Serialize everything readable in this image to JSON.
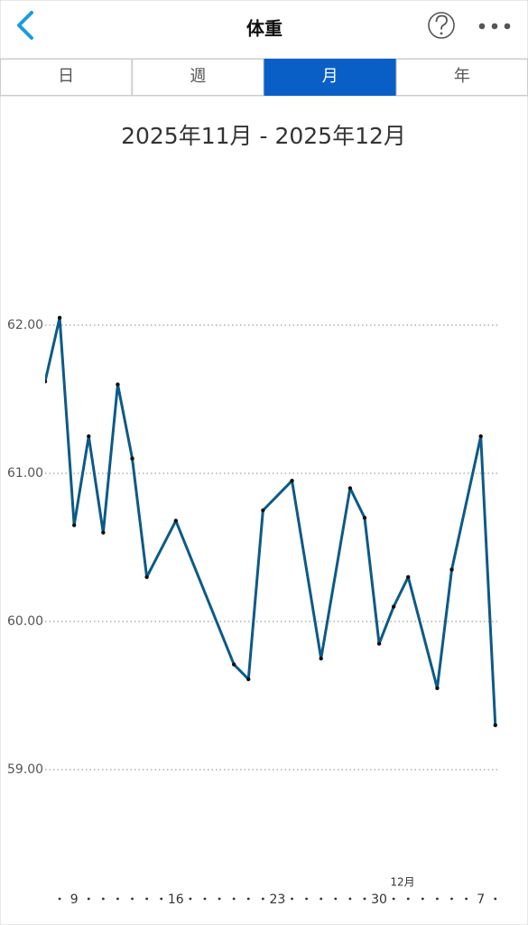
{
  "header": {
    "title": "体重"
  },
  "tabs": [
    "日",
    "週",
    "月",
    "年"
  ],
  "selected_tab": 2,
  "chart_data": {
    "type": "line",
    "title": "2025年11月 - 2025年12月",
    "x": [
      7,
      8,
      9,
      10,
      11,
      12,
      13,
      14,
      16,
      20,
      21,
      22,
      24,
      26,
      28,
      29,
      30,
      31,
      32,
      34,
      35,
      37,
      38
    ],
    "series": [
      {
        "name": "体重",
        "color": "#0c5a86",
        "values": [
          61.62,
          62.05,
          60.65,
          61.25,
          60.6,
          61.6,
          61.1,
          60.3,
          60.68,
          59.71,
          59.61,
          60.75,
          60.95,
          59.75,
          60.9,
          60.7,
          59.85,
          60.1,
          60.3,
          59.55,
          60.35,
          61.25,
          59.3
        ]
      }
    ],
    "xlim": [
      7,
      38.2
    ],
    "xticks": [
      9,
      16,
      23,
      30,
      {
        "value": 37,
        "label": "7"
      }
    ],
    "ylim": [
      58.6,
      62.6
    ],
    "yticks": [
      {
        "value": 59,
        "label": "59.00"
      },
      {
        "value": 60,
        "label": "60.00"
      },
      {
        "value": 61,
        "label": "61.00"
      },
      {
        "value": 62,
        "label": "62.00"
      }
    ],
    "annotation": "12月",
    "grid": true
  }
}
